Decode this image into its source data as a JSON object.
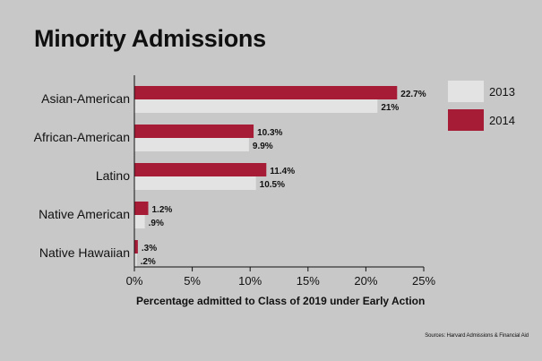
{
  "chart_data": {
    "type": "bar",
    "orientation": "horizontal",
    "title": "Minority Admissions",
    "xlabel": "Percentage admitted to Class of 2019 under Early Action",
    "source": "Sources: Harvard Admissions & Financial Aid",
    "categories": [
      "Asian-American",
      "African-American",
      "Latino",
      "Native American",
      "Native Hawaiian"
    ],
    "series": [
      {
        "name": "2014",
        "color": "#a61c36",
        "values": [
          22.7,
          10.3,
          11.4,
          1.2,
          0.3
        ],
        "labels": [
          "22.7%",
          "10.3%",
          "11.4%",
          "1.2%",
          ".3%"
        ]
      },
      {
        "name": "2013",
        "color": "#e3e3e3",
        "values": [
          21,
          9.9,
          10.5,
          0.9,
          0.2
        ],
        "labels": [
          "21%",
          "9.9%",
          "10.5%",
          ".9%",
          ".2%"
        ]
      }
    ],
    "legend_order": [
      "2013",
      "2014"
    ],
    "xlim": [
      0,
      25
    ],
    "xticks": [
      "0%",
      "5%",
      "10%",
      "15%",
      "20%",
      "25%"
    ],
    "legend_position": "top-right",
    "grid": false
  }
}
